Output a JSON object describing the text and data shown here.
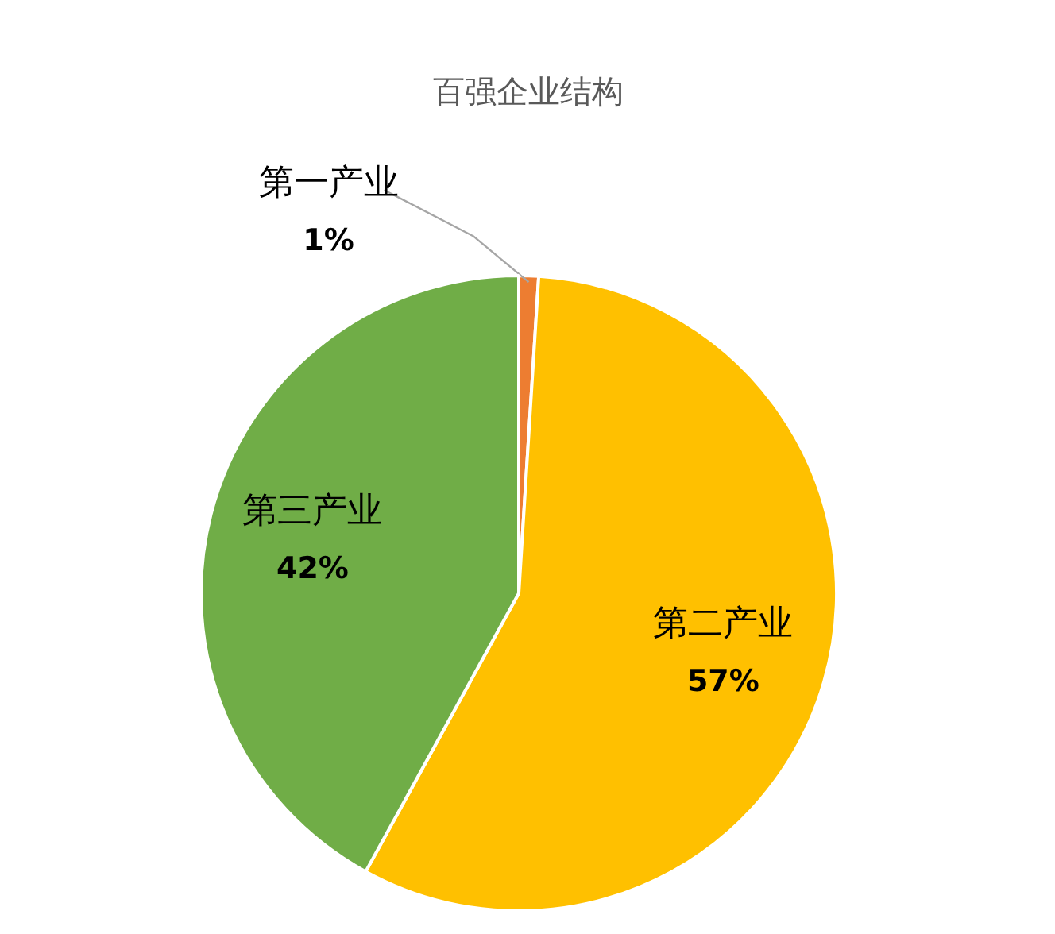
{
  "chart_data": {
    "type": "pie",
    "title": "百强企业结构",
    "categories": [
      "第一产业",
      "第二产业",
      "第三产业"
    ],
    "values": [
      1,
      57,
      42
    ],
    "value_labels": [
      "1%",
      "57%",
      "42%"
    ],
    "colors": [
      "#ed7d31",
      "#ffc000",
      "#70ad47"
    ]
  }
}
